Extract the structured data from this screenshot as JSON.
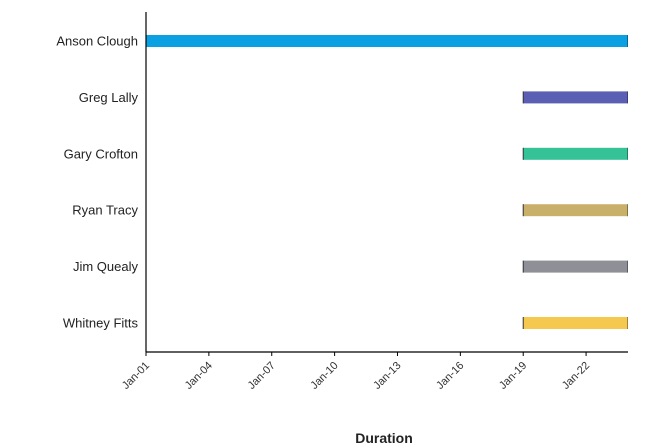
{
  "chart_data": {
    "type": "bar",
    "orientation": "horizontal-range",
    "title": "",
    "xlabel": "Duration",
    "ylabel": "",
    "x_ticks": [
      "Jan-01",
      "Jan-04",
      "Jan-07",
      "Jan-10",
      "Jan-13",
      "Jan-16",
      "Jan-19",
      "Jan-22"
    ],
    "x_range": [
      1,
      24
    ],
    "categories": [
      "Anson Clough",
      "Greg Lally",
      "Gary Crofton",
      "Ryan Tracy",
      "Jim Quealy",
      "Whitney Fitts"
    ],
    "series": [
      {
        "category": "Anson Clough",
        "start": 1,
        "end": 24,
        "color": "#0aa0e2"
      },
      {
        "category": "Greg Lally",
        "start": 19,
        "end": 24,
        "color": "#5b5fb4"
      },
      {
        "category": "Gary Crofton",
        "start": 19,
        "end": 24,
        "color": "#35c297"
      },
      {
        "category": "Ryan Tracy",
        "start": 19,
        "end": 24,
        "color": "#c9b06a"
      },
      {
        "category": "Jim Quealy",
        "start": 19,
        "end": 24,
        "color": "#8e8f97"
      },
      {
        "category": "Whitney Fitts",
        "start": 19,
        "end": 24,
        "color": "#f5c84f"
      }
    ],
    "grid": false,
    "legend": "none"
  }
}
